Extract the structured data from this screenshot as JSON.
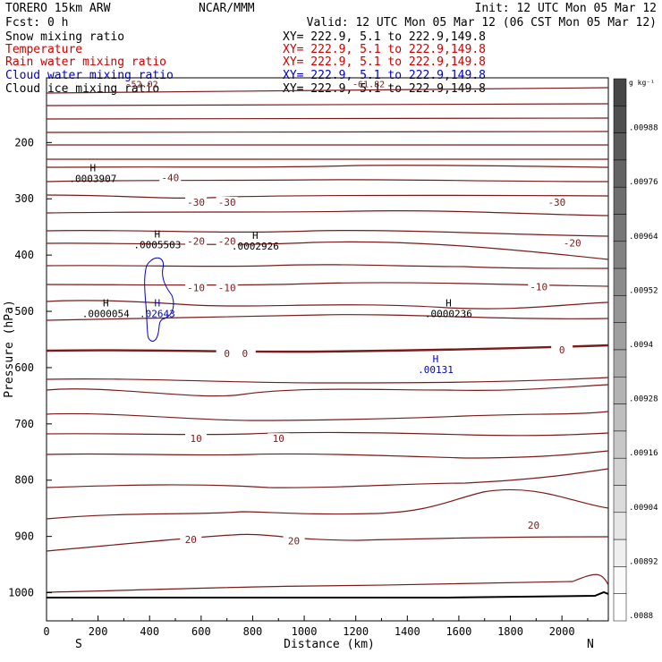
{
  "header": {
    "left_line1": "TORERO  15km ARW",
    "left_line2": "Fcst:    0 h",
    "center": "NCAR/MMM",
    "right_line1": "Init: 12 UTC Mon 05 Mar 12",
    "right_line2": "Valid: 12 UTC Mon 05 Mar 12 (06 CST Mon 05 Mar 12)"
  },
  "fields": [
    {
      "label": "Snow mixing ratio",
      "xy": "XY= 222.9,  5.1 to 222.9,149.8",
      "color": "#000000"
    },
    {
      "label": "Temperature",
      "xy": "XY= 222.9,  5.1 to 222.9,149.8",
      "color": "#cc0000"
    },
    {
      "label": "Rain water mixing ratio",
      "xy": "XY= 222.9,  5.1 to 222.9,149.8",
      "color": "#cc0000"
    },
    {
      "label": "Cloud water mixing ratio",
      "xy": "XY= 222.9,  5.1 to 222.9,149.8",
      "color": "#0000cc"
    },
    {
      "label": "Cloud ice mixing ratio",
      "xy": "XY= 222.9,  5.1 to 222.9,149.8",
      "color": "#000000"
    }
  ],
  "colors": {
    "isotherm": "#7b1a1a",
    "freezing": "#7b1a1a",
    "cloud_water": "#0000cc",
    "text": "#000000"
  },
  "chart_data": {
    "type": "contour",
    "xlabel": "Distance (km)",
    "ylabel": "Pressure (hPa)",
    "xlim": [
      0,
      2180
    ],
    "ylim": [
      1050,
      85
    ],
    "x_ticks": [
      "0",
      "200",
      "400",
      "600",
      "800",
      "1000",
      "1200",
      "1400",
      "1600",
      "1800",
      "2000"
    ],
    "y_ticks": [
      "200",
      "300",
      "400",
      "500",
      "600",
      "700",
      "800",
      "900",
      "1000"
    ],
    "end_labels": {
      "left": "S",
      "right": "N"
    },
    "colorbar": {
      "unit": "g kg⁻¹",
      "labels": [
        ".00988",
        ".00976",
        ".00964",
        ".00952",
        ".0094",
        ".00928",
        ".00916",
        ".00904",
        ".00892",
        ".0088"
      ]
    },
    "isotherm_labels": [
      {
        "text": "-40",
        "x": 480,
        "p": 262
      },
      {
        "text": "-30",
        "x": 580,
        "p": 306
      },
      {
        "text": "-30",
        "x": 700,
        "p": 306
      },
      {
        "text": "-30",
        "x": 1980,
        "p": 306
      },
      {
        "text": "-20",
        "x": 580,
        "p": 375
      },
      {
        "text": "-20",
        "x": 700,
        "p": 375
      },
      {
        "text": "-20",
        "x": 2040,
        "p": 378
      },
      {
        "text": "-10",
        "x": 580,
        "p": 458
      },
      {
        "text": "-10",
        "x": 700,
        "p": 458
      },
      {
        "text": "-10",
        "x": 1910,
        "p": 456
      },
      {
        "text": "0",
        "x": 700,
        "p": 575
      },
      {
        "text": "0",
        "x": 770,
        "p": 575
      },
      {
        "text": "0",
        "x": 2000,
        "p": 568
      },
      {
        "text": "10",
        "x": 580,
        "p": 726
      },
      {
        "text": "10",
        "x": 900,
        "p": 726
      },
      {
        "text": "20",
        "x": 560,
        "p": 905
      },
      {
        "text": "20",
        "x": 960,
        "p": 908
      },
      {
        "text": "20",
        "x": 1890,
        "p": 880
      }
    ],
    "maxima": [
      {
        "label": "H",
        "value": ".0003907",
        "x": 180,
        "p": 270,
        "color": "#000000"
      },
      {
        "label": "H",
        "value": ".0005503",
        "x": 430,
        "p": 388,
        "color": "#000000"
      },
      {
        "label": "H",
        "value": ".0002926",
        "x": 810,
        "p": 390,
        "color": "#000000"
      },
      {
        "label": "H",
        "value": ".0000054",
        "x": 230,
        "p": 510,
        "color": "#000000"
      },
      {
        "label": "H",
        "value": ".02643",
        "x": 430,
        "p": 510,
        "color": "#0000cc"
      },
      {
        "label": "H",
        "value": ".0000236",
        "x": 1560,
        "p": 510,
        "color": "#000000"
      },
      {
        "label": "H",
        "value": ".00131",
        "x": 1510,
        "p": 610,
        "color": "#0000cc"
      }
    ],
    "top_fragments": [
      {
        "text": "-52.02",
        "x": 370,
        "p": 95
      },
      {
        "text": "-61.82",
        "x": 1250,
        "p": 95
      }
    ]
  }
}
